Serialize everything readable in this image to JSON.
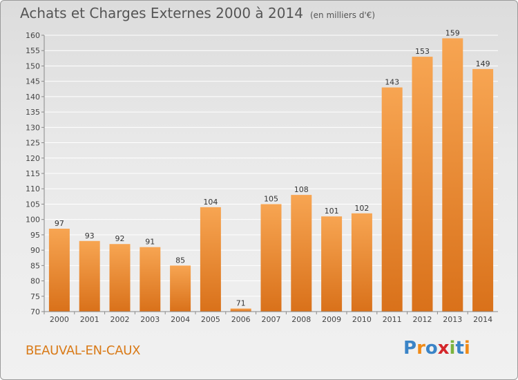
{
  "title": "Achats et Charges Externes 2000 à 2014",
  "unit": "(en milliers d'€)",
  "location": "BEAUVAL-EN-CAUX",
  "logo": {
    "text": "Proxiti",
    "colors": [
      "#3a84c7",
      "#f08a17",
      "#3a84c7",
      "#d4262a",
      "#7ab33e",
      "#3a84c7",
      "#f08a17"
    ]
  },
  "colors": {
    "bar_top": "#f7a552",
    "bar_bottom": "#d9711a",
    "grid": "#ffffff"
  },
  "chart_data": {
    "type": "bar",
    "title": "Achats et Charges Externes 2000 à 2014",
    "xlabel": "",
    "ylabel": "",
    "categories": [
      "2000",
      "2001",
      "2002",
      "2003",
      "2004",
      "2005",
      "2006",
      "2007",
      "2008",
      "2009",
      "2010",
      "2011",
      "2012",
      "2013",
      "2014"
    ],
    "values": [
      97,
      93,
      92,
      91,
      85,
      104,
      71,
      105,
      108,
      101,
      102,
      143,
      153,
      159,
      149
    ],
    "ylim": [
      70,
      160
    ],
    "yticks": [
      70,
      75,
      80,
      85,
      90,
      95,
      100,
      105,
      110,
      115,
      120,
      125,
      130,
      135,
      140,
      145,
      150,
      155,
      160
    ],
    "grid": true
  }
}
